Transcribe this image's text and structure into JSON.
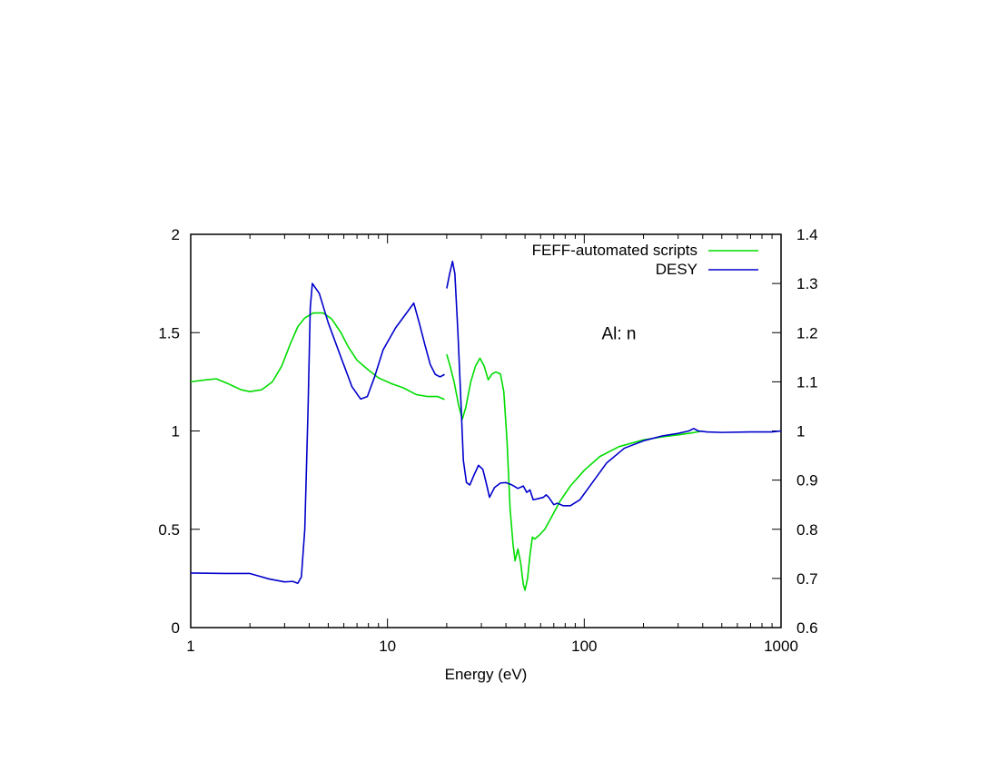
{
  "chart_data": {
    "type": "line",
    "title": "",
    "xlabel": "Energy (eV)",
    "ylabel": "",
    "y2label": "",
    "xscale": "log",
    "xlim": [
      1,
      1000
    ],
    "ylim": [
      0,
      2
    ],
    "y2lim": [
      0.6,
      1.4
    ],
    "grid": false,
    "legend_position": "top-right",
    "x_ticks": [
      {
        "value": 1,
        "label": "1"
      },
      {
        "value": 10,
        "label": "10"
      },
      {
        "value": 100,
        "label": "100"
      },
      {
        "value": 1000,
        "label": "1000"
      }
    ],
    "y_ticks": [
      {
        "value": 0,
        "label": "0"
      },
      {
        "value": 0.5,
        "label": "0.5"
      },
      {
        "value": 1,
        "label": "1"
      },
      {
        "value": 1.5,
        "label": "1.5"
      },
      {
        "value": 2,
        "label": "2"
      }
    ],
    "y2_ticks": [
      {
        "value": 0.6,
        "label": "0.6"
      },
      {
        "value": 0.7,
        "label": "0.7"
      },
      {
        "value": 0.8,
        "label": "0.8"
      },
      {
        "value": 0.9,
        "label": "0.9"
      },
      {
        "value": 1.0,
        "label": "1"
      },
      {
        "value": 1.1,
        "label": "1.1"
      },
      {
        "value": 1.2,
        "label": "1.2"
      },
      {
        "value": 1.3,
        "label": "1.3"
      },
      {
        "value": 1.4,
        "label": "1.4"
      }
    ],
    "annotations": [
      {
        "text": "Al: n",
        "x": 150,
        "y": 1.5
      }
    ],
    "series": [
      {
        "name": "FEFF-automated scripts",
        "color": "#00dd00",
        "axis": "left",
        "segments": [
          [
            [
              1,
              1.25
            ],
            [
              1.2,
              1.26
            ],
            [
              1.35,
              1.265
            ],
            [
              1.55,
              1.24
            ],
            [
              1.8,
              1.21
            ],
            [
              2.0,
              1.2
            ],
            [
              2.3,
              1.21
            ],
            [
              2.6,
              1.25
            ],
            [
              2.9,
              1.33
            ],
            [
              3.2,
              1.44
            ],
            [
              3.5,
              1.53
            ],
            [
              3.8,
              1.575
            ],
            [
              4.2,
              1.6
            ],
            [
              4.7,
              1.6
            ],
            [
              5.2,
              1.57
            ],
            [
              5.8,
              1.5
            ],
            [
              6.3,
              1.43
            ],
            [
              7.0,
              1.36
            ],
            [
              8.0,
              1.31
            ],
            [
              9.0,
              1.27
            ],
            [
              10.5,
              1.24
            ],
            [
              12,
              1.22
            ],
            [
              14,
              1.185
            ],
            [
              16,
              1.175
            ],
            [
              18,
              1.175
            ],
            [
              19.5,
              1.16
            ]
          ],
          [
            [
              20,
              1.39
            ],
            [
              20.8,
              1.33
            ],
            [
              21.8,
              1.25
            ],
            [
              23,
              1.13
            ],
            [
              24,
              1.06
            ],
            [
              25,
              1.12
            ],
            [
              26.5,
              1.25
            ],
            [
              28,
              1.33
            ],
            [
              29.5,
              1.37
            ],
            [
              31,
              1.33
            ],
            [
              32.5,
              1.26
            ],
            [
              34,
              1.29
            ],
            [
              35.5,
              1.3
            ],
            [
              37.5,
              1.29
            ],
            [
              39,
              1.2
            ],
            [
              40.5,
              0.95
            ],
            [
              42,
              0.6
            ],
            [
              43.5,
              0.42
            ],
            [
              44.5,
              0.34
            ],
            [
              46,
              0.4
            ],
            [
              47.5,
              0.33
            ],
            [
              49,
              0.22
            ],
            [
              50,
              0.19
            ],
            [
              51.5,
              0.25
            ],
            [
              53,
              0.37
            ],
            [
              54.5,
              0.46
            ],
            [
              56,
              0.45
            ],
            [
              59,
              0.47
            ],
            [
              63,
              0.5
            ],
            [
              68,
              0.56
            ],
            [
              75,
              0.64
            ],
            [
              85,
              0.72
            ],
            [
              100,
              0.8
            ],
            [
              120,
              0.87
            ],
            [
              150,
              0.92
            ],
            [
              200,
              0.955
            ],
            [
              250,
              0.97
            ],
            [
              300,
              0.98
            ],
            [
              350,
              0.99
            ],
            [
              400,
              1.0
            ]
          ]
        ]
      },
      {
        "name": "DESY",
        "color": "#0000cc",
        "axis": "right",
        "segments": [
          [
            [
              1,
              0.711
            ],
            [
              1.5,
              0.71
            ],
            [
              2.0,
              0.71
            ],
            [
              2.5,
              0.699
            ],
            [
              3.0,
              0.693
            ],
            [
              3.3,
              0.694
            ],
            [
              3.5,
              0.69
            ],
            [
              3.65,
              0.703
            ],
            [
              3.8,
              0.8
            ],
            [
              3.95,
              1.05
            ],
            [
              4.05,
              1.25
            ],
            [
              4.15,
              1.3
            ],
            [
              4.5,
              1.28
            ],
            [
              5.0,
              1.22
            ],
            [
              5.8,
              1.15
            ],
            [
              6.6,
              1.09
            ],
            [
              7.3,
              1.065
            ],
            [
              7.9,
              1.07
            ],
            [
              8.6,
              1.11
            ],
            [
              9.5,
              1.165
            ],
            [
              11,
              1.21
            ],
            [
              12.5,
              1.24
            ],
            [
              13.6,
              1.26
            ],
            [
              14.5,
              1.22
            ],
            [
              15.5,
              1.175
            ],
            [
              16.5,
              1.135
            ],
            [
              17.5,
              1.115
            ],
            [
              18.5,
              1.11
            ],
            [
              19.5,
              1.115
            ]
          ],
          [
            [
              20,
              1.29
            ],
            [
              20.7,
              1.32
            ],
            [
              21.4,
              1.345
            ],
            [
              22,
              1.32
            ],
            [
              22.8,
              1.2
            ],
            [
              23.5,
              1.08
            ],
            [
              24.3,
              0.94
            ],
            [
              25.2,
              0.895
            ],
            [
              26.2,
              0.89
            ],
            [
              27.5,
              0.91
            ],
            [
              29,
              0.93
            ],
            [
              30.5,
              0.922
            ],
            [
              31.5,
              0.9
            ],
            [
              33,
              0.865
            ],
            [
              35,
              0.885
            ],
            [
              37.5,
              0.894
            ],
            [
              40,
              0.895
            ],
            [
              43,
              0.89
            ],
            [
              46,
              0.883
            ],
            [
              49,
              0.888
            ],
            [
              51,
              0.875
            ],
            [
              53,
              0.88
            ],
            [
              55,
              0.86
            ],
            [
              58,
              0.862
            ],
            [
              62,
              0.865
            ],
            [
              64,
              0.87
            ],
            [
              66,
              0.865
            ],
            [
              70,
              0.85
            ],
            [
              73,
              0.853
            ],
            [
              78,
              0.848
            ],
            [
              85,
              0.848
            ],
            [
              95,
              0.86
            ],
            [
              110,
              0.895
            ],
            [
              130,
              0.935
            ],
            [
              160,
              0.965
            ],
            [
              200,
              0.98
            ],
            [
              250,
              0.99
            ],
            [
              300,
              0.995
            ],
            [
              340,
              1.0
            ],
            [
              360,
              1.005
            ],
            [
              380,
              1.0
            ],
            [
              420,
              0.998
            ],
            [
              500,
              0.997
            ],
            [
              700,
              0.998
            ],
            [
              900,
              0.998
            ],
            [
              1000,
              1.0
            ]
          ]
        ]
      }
    ]
  }
}
